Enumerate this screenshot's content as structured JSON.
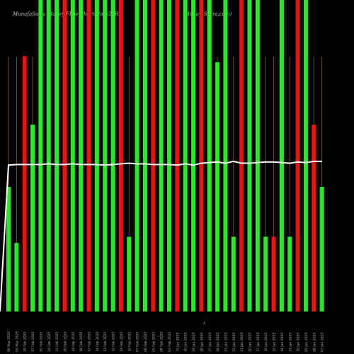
{
  "chart_data": {
    "type": "bar",
    "title": "MunafaSutra Money Flow Charts for GKBK",
    "watermark": "(MunafaSutra.com)",
    "marker": "4",
    "colors": {
      "up": "#22ee22",
      "down": "#ee1111",
      "line": "#ffffff",
      "grid": "#9b6a10",
      "background": "#000000"
    },
    "grid": true,
    "categories": [
      "06 Mar 2025",
      "03 Mar 2025",
      "28 Feb 2025",
      "27 Feb 2025",
      "25 Feb 2025",
      "24 Feb 2025",
      "21 Feb 2025",
      "20 Feb 2025",
      "19 Feb 2025",
      "18 Feb 2025",
      "17 Feb 2025",
      "14 Feb 2025",
      "13 Feb 2025",
      "12 Feb 2025",
      "11 Feb 2025",
      "10 Feb 2025",
      "07 Feb 2025",
      "06 Feb 2025",
      "05 Feb 2025",
      "04 Feb 2025",
      "03 Feb 2025",
      "31 Jan 2025",
      "30 Jan 2025",
      "29 Jan 2025",
      "28 Jan 2025",
      "27 Jan 2025",
      "24 Jan 2025",
      "23 Jan 2025",
      "22 Jan 2025",
      "21 Jan 2025",
      "20 Jan 2025",
      "17 Jan 2025",
      "16 Jan 2025",
      "15 Jan 2025",
      "14 Jan 2025",
      "13 Jan 2025",
      "10 Jan 2025",
      "09 Jan 2025",
      "08 Jan 2025",
      "07 Jan 2025"
    ],
    "bar_colors": [
      "green",
      "green",
      "red",
      "green",
      "green",
      "green",
      "green",
      "red",
      "green",
      "green",
      "red",
      "green",
      "green",
      "green",
      "red",
      "green",
      "green",
      "green",
      "red",
      "green",
      "green",
      "red",
      "green",
      "green",
      "red",
      "green",
      "green",
      "green",
      "green",
      "red",
      "green",
      "green",
      "green",
      "red",
      "green",
      "green",
      "red",
      "green",
      "red",
      "green"
    ],
    "values": [
      200,
      110,
      410,
      300,
      500,
      500,
      500,
      500,
      500,
      500,
      500,
      500,
      500,
      500,
      500,
      120,
      500,
      500,
      500,
      500,
      500,
      500,
      500,
      500,
      500,
      500,
      400,
      500,
      120,
      500,
      500,
      500,
      120,
      120,
      500,
      120,
      500,
      500,
      300,
      200
    ],
    "line_values": [
      235,
      236,
      236,
      236,
      236,
      237,
      236,
      236,
      237,
      236,
      236,
      236,
      235,
      236,
      237,
      238,
      237,
      237,
      236,
      236,
      236,
      235,
      237,
      235,
      238,
      239,
      240,
      238,
      241,
      238,
      238,
      239,
      240,
      240,
      239,
      238,
      240,
      239,
      241,
      241
    ],
    "ylim": [
      0,
      500
    ]
  }
}
